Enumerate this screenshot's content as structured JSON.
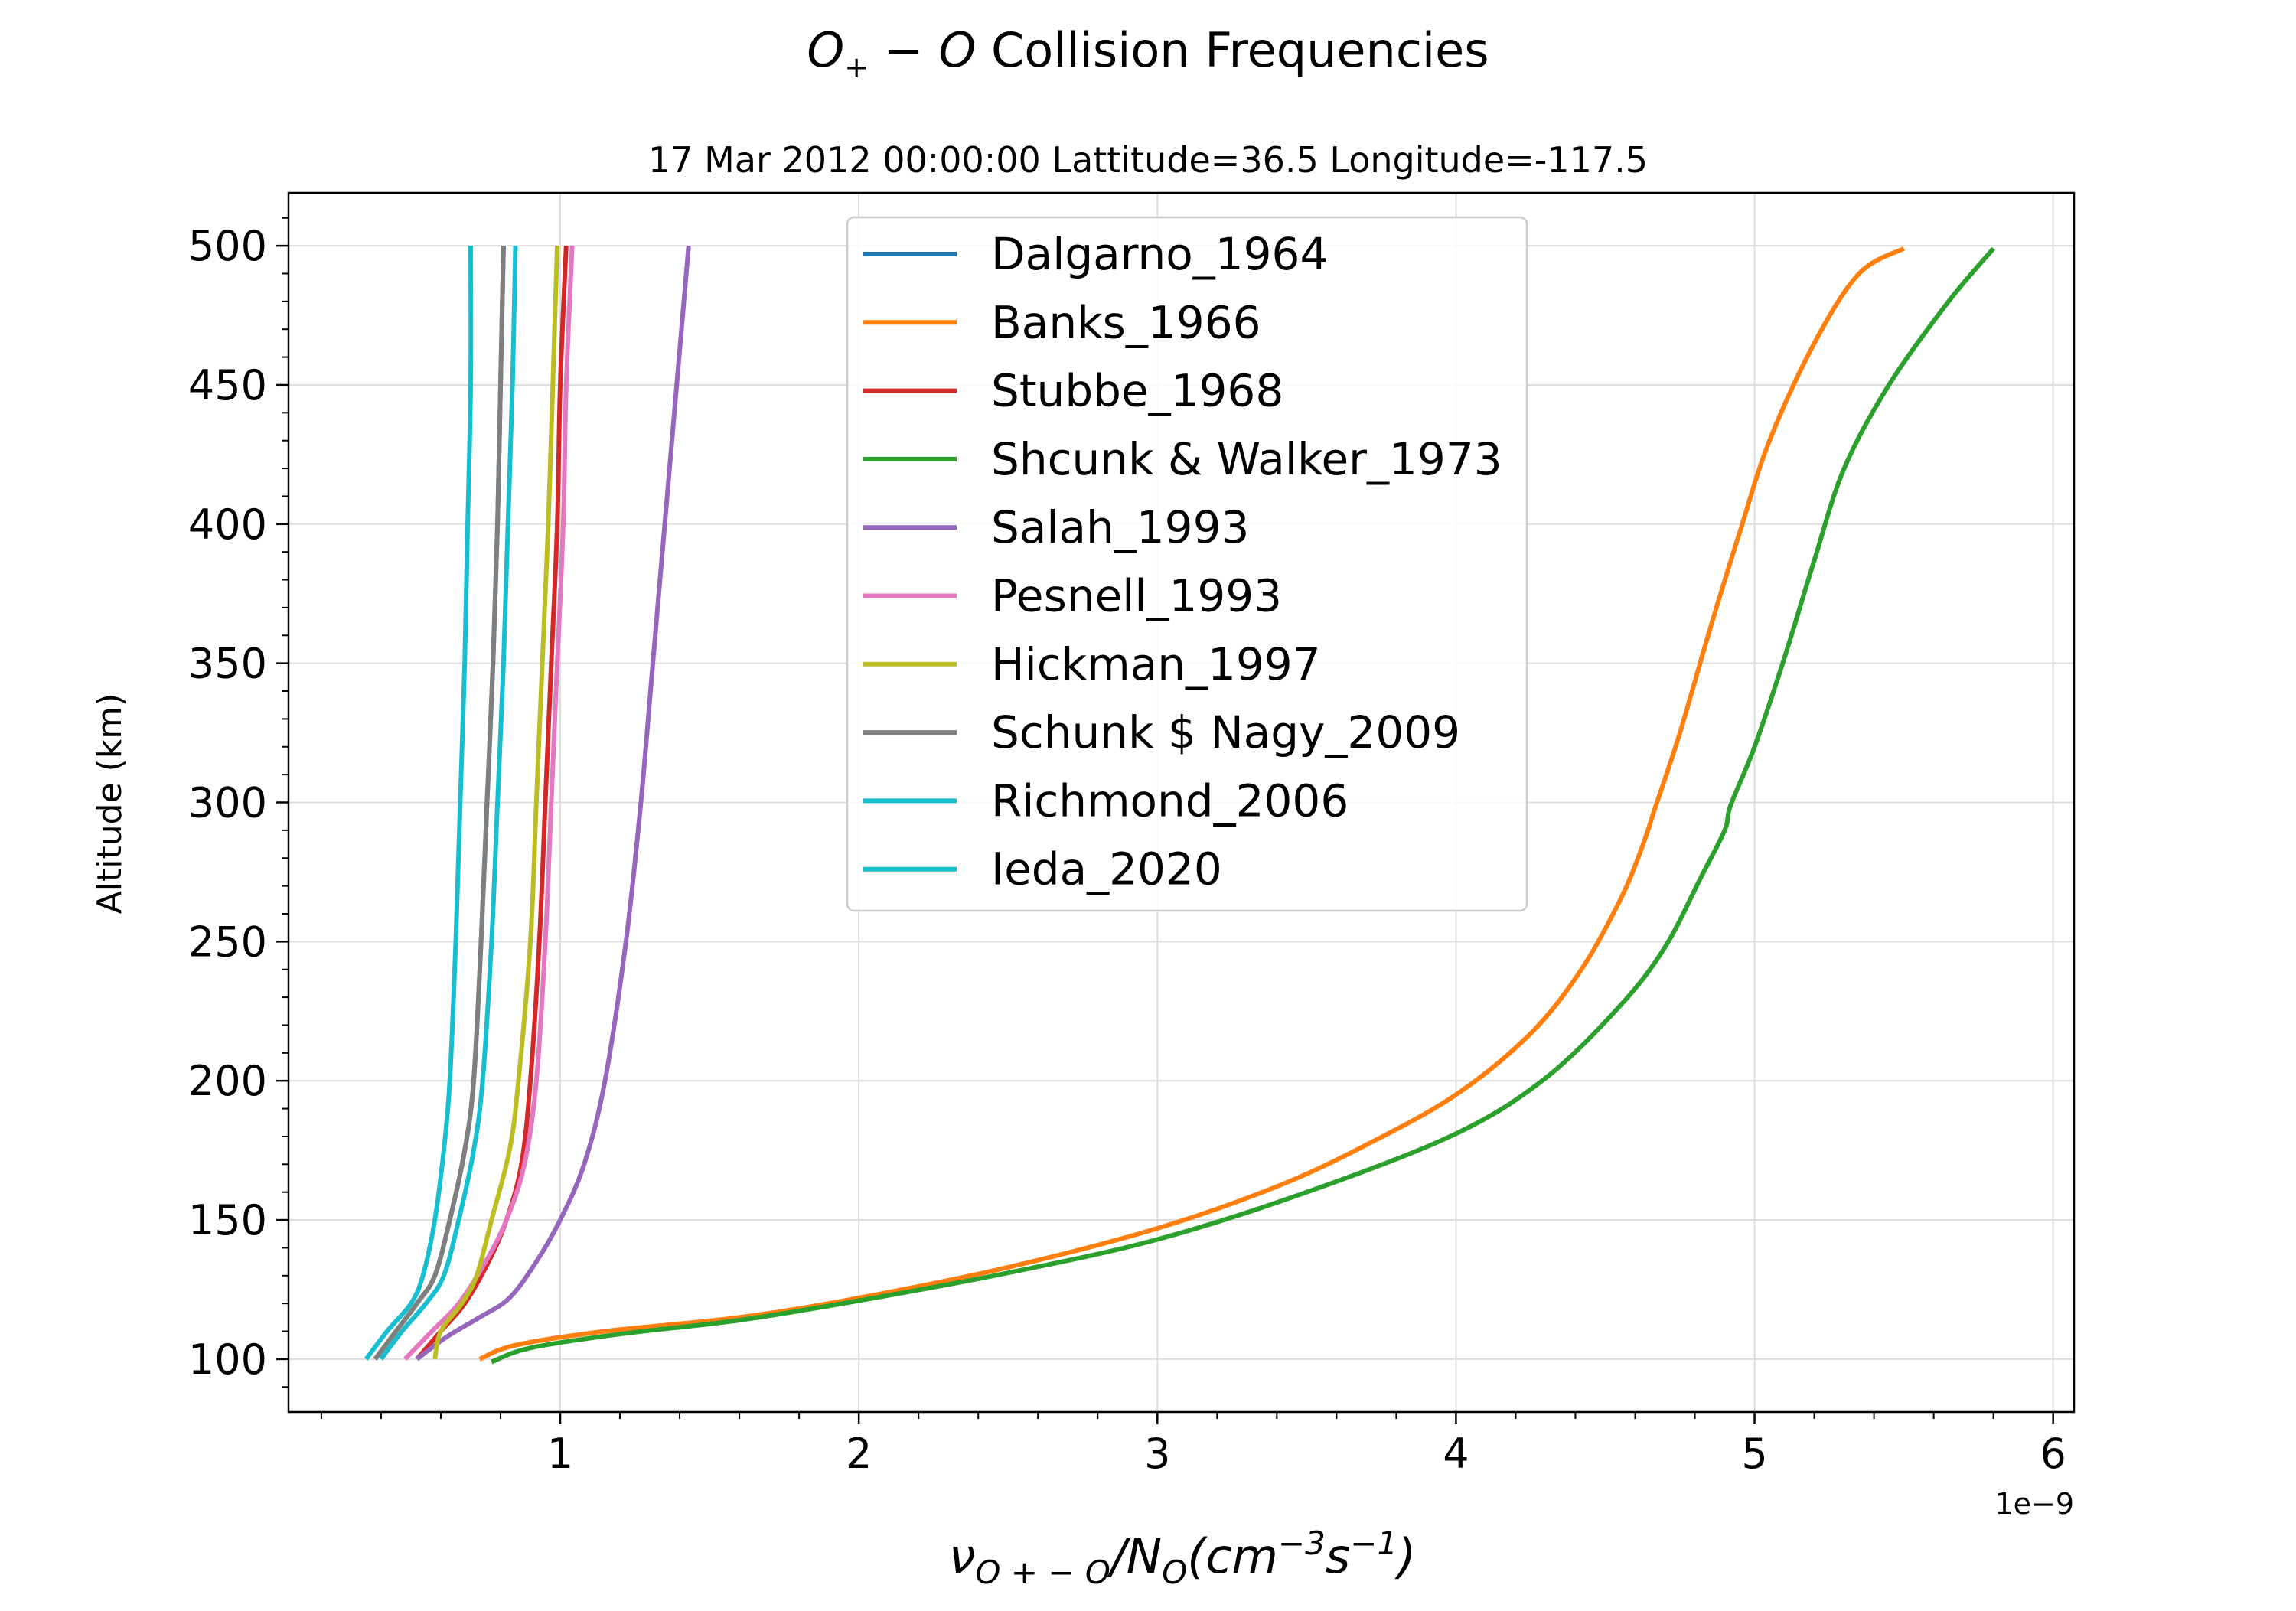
{
  "chart_data": {
    "type": "line",
    "title_main": "O",
    "title_sub": "+",
    "title_rest": " − O",
    "title_text": " Collision Frequencies",
    "subtitle": "17 Mar 2012 00:00:00 Lattitude=36.5 Longitude=-117.5",
    "ylabel": "Altitude (km)",
    "xlabel_nu": "ν",
    "xlabel_nu_sub": "O + − O",
    "xlabel_slash": "/N",
    "xlabel_n_sub": "O",
    "xlabel_paren_open": "(cm",
    "xlabel_cm_exp": "−3",
    "xlabel_s": "s",
    "xlabel_s_exp": "−1",
    "xlabel_paren_close": ")",
    "x_scale_label": "1e−9",
    "x_scale": 1e-09,
    "xlim": [
      0.09,
      6.07
    ],
    "ylim": [
      81,
      519
    ],
    "x_ticks": [
      1,
      2,
      3,
      4,
      5,
      6
    ],
    "x_tick_labels": [
      "1",
      "2",
      "3",
      "4",
      "5",
      "6"
    ],
    "y_ticks": [
      100,
      150,
      200,
      250,
      300,
      350,
      400,
      450,
      500
    ],
    "y_tick_labels": [
      "100",
      "150",
      "200",
      "250",
      "300",
      "350",
      "400",
      "450",
      "500"
    ],
    "grid": true,
    "legend_position": "top-center",
    "series": [
      {
        "name": "Dalgarno_1964",
        "color": "#1f77b4",
        "points": [
          [
            0.38,
            100
          ],
          [
            0.45,
            110
          ],
          [
            0.52,
            120
          ],
          [
            0.58,
            130
          ],
          [
            0.63,
            150
          ],
          [
            0.68,
            175
          ],
          [
            0.71,
            200
          ],
          [
            0.735,
            250
          ],
          [
            0.755,
            300
          ],
          [
            0.775,
            350
          ],
          [
            0.79,
            400
          ],
          [
            0.8,
            450
          ],
          [
            0.81,
            500
          ]
        ]
      },
      {
        "name": "Banks_1966",
        "color": "#ff7f0e",
        "points": [
          [
            0.73,
            100
          ],
          [
            0.85,
            105
          ],
          [
            1.15,
            110
          ],
          [
            1.6,
            115
          ],
          [
            2.0,
            122
          ],
          [
            2.5,
            133
          ],
          [
            3.0,
            147
          ],
          [
            3.4,
            162
          ],
          [
            3.7,
            177
          ],
          [
            4.0,
            195
          ],
          [
            4.25,
            217
          ],
          [
            4.42,
            240
          ],
          [
            4.55,
            265
          ],
          [
            4.62,
            283
          ],
          [
            4.67,
            299
          ],
          [
            4.75,
            325
          ],
          [
            4.85,
            362
          ],
          [
            4.95,
            397
          ],
          [
            5.05,
            430
          ],
          [
            5.2,
            465
          ],
          [
            5.35,
            490
          ],
          [
            5.5,
            499
          ]
        ]
      },
      {
        "name": "Stubbe_1968",
        "color": "#d62728",
        "points": [
          [
            0.52,
            100
          ],
          [
            0.6,
            110
          ],
          [
            0.68,
            120
          ],
          [
            0.76,
            135
          ],
          [
            0.82,
            150
          ],
          [
            0.87,
            170
          ],
          [
            0.9,
            200
          ],
          [
            0.93,
            250
          ],
          [
            0.95,
            300
          ],
          [
            0.97,
            350
          ],
          [
            0.99,
            400
          ],
          [
            1.0,
            450
          ],
          [
            1.02,
            500
          ]
        ]
      },
      {
        "name": "Shcunk & Walker_1973",
        "color": "#2ca02c",
        "points": [
          [
            0.77,
            99
          ],
          [
            0.9,
            104
          ],
          [
            1.2,
            109
          ],
          [
            1.6,
            114
          ],
          [
            2.0,
            121
          ],
          [
            2.5,
            131
          ],
          [
            3.0,
            143
          ],
          [
            3.5,
            160
          ],
          [
            4.0,
            181
          ],
          [
            4.3,
            201
          ],
          [
            4.55,
            227
          ],
          [
            4.7,
            248
          ],
          [
            4.82,
            273
          ],
          [
            4.9,
            290
          ],
          [
            4.92,
            299
          ],
          [
            5.0,
            320
          ],
          [
            5.1,
            352
          ],
          [
            5.2,
            387
          ],
          [
            5.3,
            420
          ],
          [
            5.45,
            450
          ],
          [
            5.65,
            480
          ],
          [
            5.8,
            499
          ]
        ]
      },
      {
        "name": "Salah_1993",
        "color": "#9467bd",
        "points": [
          [
            0.52,
            100
          ],
          [
            0.62,
            108
          ],
          [
            0.73,
            115
          ],
          [
            0.83,
            122
          ],
          [
            0.92,
            135
          ],
          [
            1.0,
            150
          ],
          [
            1.08,
            170
          ],
          [
            1.15,
            200
          ],
          [
            1.22,
            250
          ],
          [
            1.27,
            300
          ],
          [
            1.31,
            350
          ],
          [
            1.35,
            400
          ],
          [
            1.39,
            450
          ],
          [
            1.43,
            500
          ]
        ]
      },
      {
        "name": "Pesnell_1993",
        "color": "#e377c2",
        "points": [
          [
            0.48,
            100
          ],
          [
            0.57,
            110
          ],
          [
            0.66,
            120
          ],
          [
            0.75,
            135
          ],
          [
            0.82,
            150
          ],
          [
            0.88,
            170
          ],
          [
            0.92,
            200
          ],
          [
            0.95,
            250
          ],
          [
            0.97,
            300
          ],
          [
            0.99,
            350
          ],
          [
            1.01,
            400
          ],
          [
            1.02,
            450
          ],
          [
            1.04,
            500
          ]
        ]
      },
      {
        "name": "Hickman_1997",
        "color": "#bcbd22",
        "points": [
          [
            0.58,
            100
          ],
          [
            0.6,
            110
          ],
          [
            0.67,
            120
          ],
          [
            0.72,
            130
          ],
          [
            0.77,
            150
          ],
          [
            0.83,
            175
          ],
          [
            0.86,
            200
          ],
          [
            0.9,
            250
          ],
          [
            0.92,
            300
          ],
          [
            0.94,
            350
          ],
          [
            0.96,
            400
          ],
          [
            0.975,
            450
          ],
          [
            0.99,
            500
          ]
        ]
      },
      {
        "name": "Schunk $ Nagy_2009",
        "color": "#7f7f7f",
        "points": [
          [
            0.38,
            100
          ],
          [
            0.45,
            110
          ],
          [
            0.52,
            120
          ],
          [
            0.58,
            130
          ],
          [
            0.63,
            150
          ],
          [
            0.68,
            175
          ],
          [
            0.71,
            200
          ],
          [
            0.735,
            250
          ],
          [
            0.755,
            300
          ],
          [
            0.775,
            350
          ],
          [
            0.79,
            400
          ],
          [
            0.8,
            450
          ],
          [
            0.81,
            500
          ]
        ]
      },
      {
        "name": "Richmond_2006",
        "color": "#17becf",
        "points": [
          [
            0.4,
            100
          ],
          [
            0.47,
            110
          ],
          [
            0.55,
            120
          ],
          [
            0.61,
            130
          ],
          [
            0.66,
            150
          ],
          [
            0.71,
            175
          ],
          [
            0.74,
            200
          ],
          [
            0.77,
            250
          ],
          [
            0.79,
            300
          ],
          [
            0.81,
            350
          ],
          [
            0.825,
            400
          ],
          [
            0.84,
            450
          ],
          [
            0.85,
            500
          ]
        ]
      },
      {
        "name": "Ieda_2020",
        "color": "#17becf",
        "points": [
          [
            0.35,
            100
          ],
          [
            0.42,
            110
          ],
          [
            0.5,
            120
          ],
          [
            0.54,
            130
          ],
          [
            0.58,
            150
          ],
          [
            0.61,
            175
          ],
          [
            0.63,
            200
          ],
          [
            0.65,
            250
          ],
          [
            0.665,
            300
          ],
          [
            0.68,
            350
          ],
          [
            0.69,
            400
          ],
          [
            0.7,
            450
          ],
          [
            0.7,
            500
          ]
        ]
      }
    ]
  }
}
